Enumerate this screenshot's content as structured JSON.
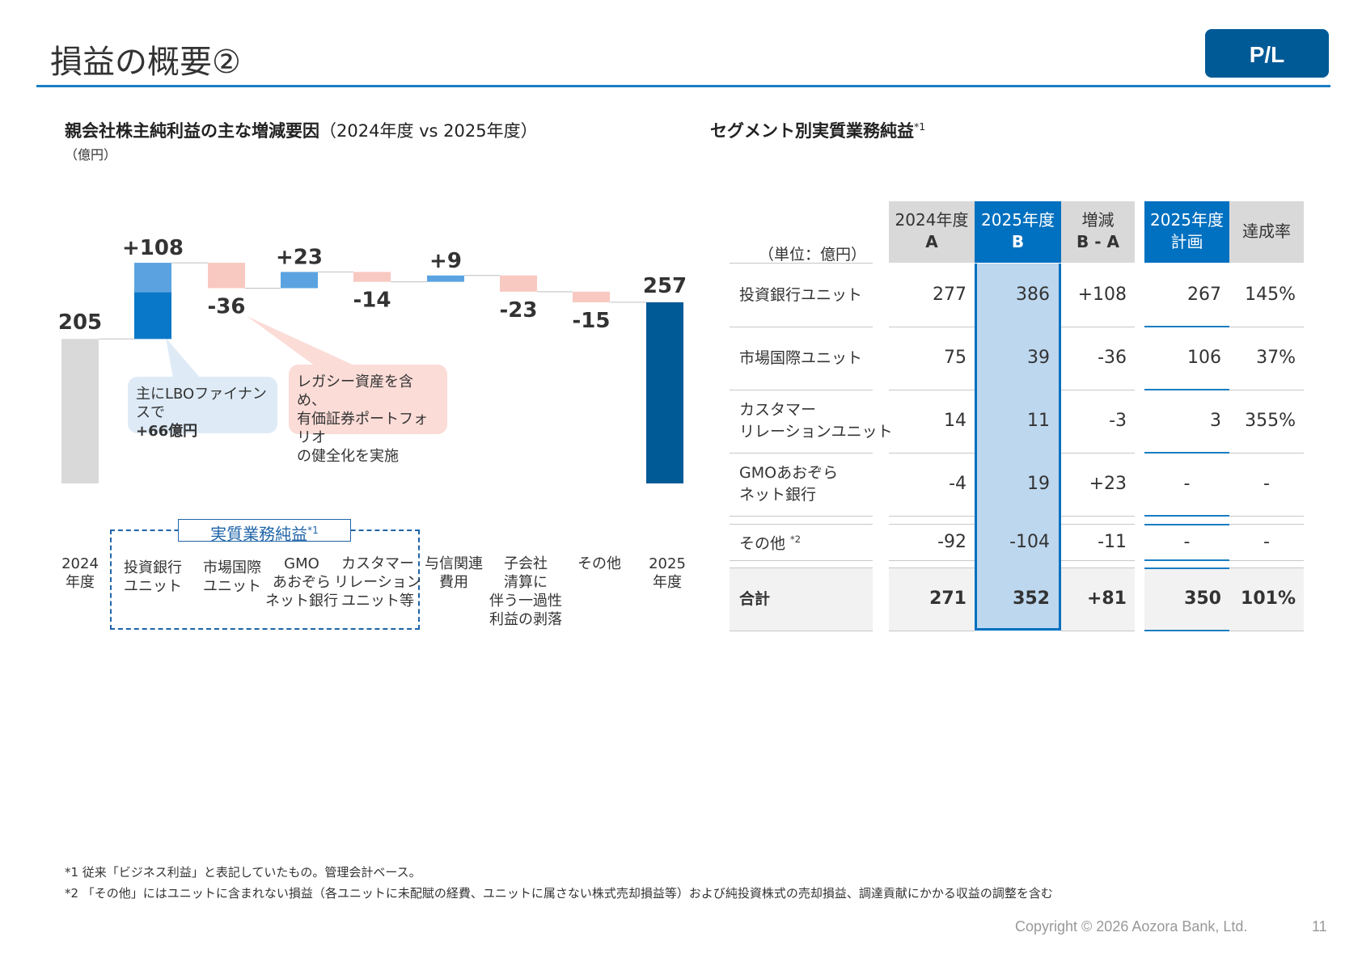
{
  "header": {
    "title": "損益の概要②",
    "badge": "P/L",
    "accent_color": "#1a7dc2",
    "badge_color": "#005a96"
  },
  "left": {
    "title": "親会社株主純利益の主な増減要因",
    "title_sub": "（2024年度 vs 2025年度）",
    "unit": "（億円）",
    "callout_blue": {
      "line1": "主にLBOファイナンスで",
      "line2": "+66億円"
    },
    "callout_pink": {
      "line1": "レガシー資産を含め、",
      "line2": "有価証券ポートフォリオ",
      "line3": "の健全化を実施"
    },
    "ops_label": "実質業務純益",
    "ops_sup": "*1"
  },
  "chart_data": {
    "type": "bar",
    "subtype": "waterfall",
    "title": "親会社株主純利益の主な増減要因（2024年度 vs 2025年度）",
    "ylabel": "（億円）",
    "categories": [
      [
        "2024",
        "年度"
      ],
      [
        "投資銀行",
        "ユニット"
      ],
      [
        "市場国際",
        "ユニット"
      ],
      [
        "GMO",
        "あおぞら",
        "ネット銀行"
      ],
      [
        "カスタマー",
        "リレーション",
        "ユニット等"
      ],
      [
        "与信関連",
        "費用"
      ],
      [
        "子会社",
        "清算に",
        "伴う一過性",
        "利益の剥落"
      ],
      [
        "その他"
      ],
      [
        "2025",
        "年度"
      ]
    ],
    "values": [
      205,
      108,
      -36,
      23,
      -14,
      9,
      -23,
      -15,
      257
    ],
    "labels": [
      "205",
      "+108",
      "-36",
      "+23",
      "-14",
      "+9",
      "-23",
      "-15",
      "257"
    ],
    "kinds": [
      "total",
      "delta",
      "delta",
      "delta",
      "delta",
      "delta",
      "delta",
      "delta",
      "total"
    ],
    "highlight_portion": {
      "category_index": 1,
      "value": 66
    },
    "colors": {
      "start": "#d9d9d9",
      "increase": "#5ba3e0",
      "increase_highlight": "#0a78c8",
      "decrease": "#f8c9c1",
      "end": "#005a96"
    }
  },
  "right": {
    "title": "セグメント別実質業務純益",
    "title_sup": "*1",
    "unit": "（単位：億円）",
    "columns": [
      {
        "line1": "2024年度",
        "line2": "A"
      },
      {
        "line1": "2025年度",
        "line2": "B"
      },
      {
        "line1": "増減",
        "line2": "B - A"
      },
      {
        "line1": "2025年度",
        "line2": "計画"
      },
      {
        "line1": "達成率",
        "line2": ""
      }
    ],
    "rows": [
      {
        "label1": "投資銀行ユニット",
        "label2": "",
        "sup": "",
        "values": [
          "277",
          "386",
          "+108",
          "267",
          "145%"
        ]
      },
      {
        "label1": "市場国際ユニット",
        "label2": "",
        "sup": "",
        "values": [
          "75",
          "39",
          "-36",
          "106",
          "37%"
        ]
      },
      {
        "label1": "カスタマー",
        "label2": "リレーションユニット",
        "sup": "",
        "values": [
          "14",
          "11",
          "-3",
          "3",
          "355%"
        ]
      },
      {
        "label1": "GMOあおぞら",
        "label2": "ネット銀行",
        "sup": "",
        "values": [
          "-4",
          "19",
          "+23",
          "-",
          "-"
        ]
      },
      {
        "label1": "その他 ",
        "label2": "",
        "sup": "*2",
        "values": [
          "-92",
          "-104",
          "-11",
          "-",
          "-"
        ]
      },
      {
        "label1": "合計",
        "label2": "",
        "sup": "",
        "values": [
          "271",
          "352",
          "+81",
          "350",
          "101%"
        ]
      }
    ]
  },
  "footnotes": {
    "note1": "*1 従来「ビジネス利益」と表記していたもの。管理会計ベース。",
    "note2": "*2 「その他」にはユニットに含まれない損益（各ユニットに未配賦の経費、ユニットに属さない株式売却損益等）および純投資株式の売却損益、調達貢献にかかる収益の調整を含む"
  },
  "footer": {
    "copyright": "Copyright © 2026 Aozora Bank, Ltd.",
    "page_number": "11"
  }
}
